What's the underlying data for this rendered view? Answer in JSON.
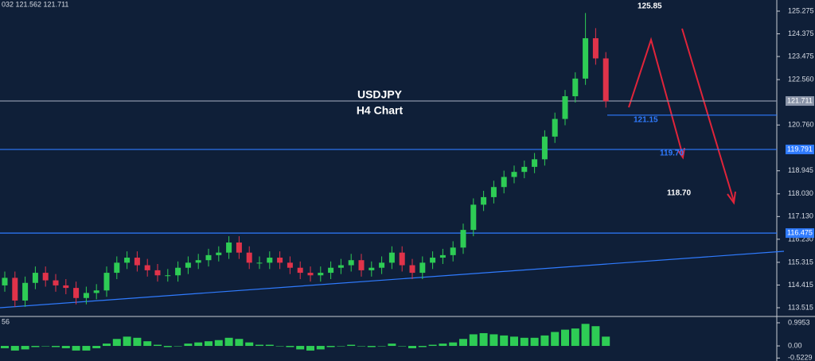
{
  "chart_data": {
    "type": "candlestick",
    "header": "032 121.562 121.711",
    "title": "USDJPY",
    "subtitle": "H4 Chart",
    "up_color": "#2ecc55",
    "down_color": "#e0334a",
    "open": [
      114.4,
      114.7,
      113.8,
      114.5,
      114.9,
      114.6,
      114.4,
      114.3,
      113.9,
      114.1,
      114.2,
      114.9,
      115.3,
      115.5,
      115.2,
      115.0,
      114.8,
      114.8,
      115.1,
      115.3,
      115.4,
      115.6,
      115.7,
      116.1,
      115.7,
      115.3,
      115.3,
      115.5,
      115.3,
      115.1,
      114.9,
      114.8,
      114.9,
      115.1,
      115.2,
      115.4,
      115.0,
      115.1,
      115.3,
      115.7,
      115.2,
      114.9,
      115.3,
      115.5,
      115.6,
      115.9,
      116.6,
      117.6,
      117.9,
      118.3,
      118.7,
      118.9,
      119.1,
      119.4,
      120.3,
      121.0,
      121.9,
      122.6,
      124.2,
      123.4
    ],
    "high": [
      114.95,
      114.95,
      114.75,
      115.15,
      115.15,
      114.85,
      114.65,
      114.55,
      114.35,
      114.45,
      115.15,
      115.55,
      115.75,
      115.75,
      115.45,
      115.25,
      115.05,
      115.35,
      115.55,
      115.65,
      115.85,
      115.95,
      116.35,
      116.35,
      115.95,
      115.55,
      115.75,
      115.75,
      115.55,
      115.35,
      115.15,
      115.15,
      115.35,
      115.45,
      115.65,
      115.65,
      115.35,
      115.55,
      115.95,
      115.95,
      115.45,
      115.55,
      115.75,
      115.85,
      116.15,
      116.85,
      117.85,
      118.15,
      118.55,
      118.95,
      119.15,
      119.35,
      119.65,
      120.55,
      121.25,
      122.15,
      122.85,
      125.2,
      124.6,
      123.65
    ],
    "low": [
      114.15,
      113.55,
      113.55,
      114.25,
      114.35,
      114.15,
      114.05,
      113.65,
      113.65,
      113.85,
      113.95,
      114.65,
      115.05,
      114.95,
      114.75,
      114.55,
      114.55,
      114.55,
      114.85,
      115.05,
      115.15,
      115.35,
      115.45,
      115.45,
      115.05,
      115.05,
      115.05,
      115.05,
      114.85,
      114.65,
      114.55,
      114.55,
      114.65,
      114.85,
      114.95,
      114.75,
      114.75,
      114.85,
      115.05,
      114.95,
      114.65,
      114.65,
      115.05,
      115.25,
      115.35,
      115.65,
      116.35,
      117.35,
      117.65,
      118.05,
      118.45,
      118.65,
      118.85,
      119.15,
      120.05,
      120.75,
      121.65,
      122.35,
      123.15,
      121.45
    ],
    "close": [
      114.7,
      113.8,
      114.5,
      114.9,
      114.6,
      114.4,
      114.3,
      113.9,
      114.1,
      114.2,
      114.9,
      115.3,
      115.5,
      115.2,
      115.0,
      114.8,
      114.8,
      115.1,
      115.3,
      115.4,
      115.6,
      115.7,
      116.1,
      115.7,
      115.3,
      115.3,
      115.5,
      115.3,
      115.1,
      114.9,
      114.8,
      114.9,
      115.1,
      115.2,
      115.4,
      115.0,
      115.1,
      115.3,
      115.7,
      115.2,
      114.9,
      115.3,
      115.5,
      115.6,
      115.9,
      116.6,
      117.6,
      117.9,
      118.3,
      118.7,
      118.9,
      119.1,
      119.4,
      120.3,
      121.0,
      121.9,
      122.6,
      124.2,
      123.4,
      121.7
    ],
    "ylim": [
      113.168,
      125.716
    ],
    "yticks": [
      125.275,
      124.375,
      123.475,
      {
        "value": 122.56,
        "label": "122.560"
      },
      {
        "value": 120.76,
        "label": "120.760"
      },
      118.945,
      {
        "value": 118.03,
        "label": "118.030"
      },
      {
        "value": 117.13,
        "label": "117.130"
      },
      {
        "value": 116.23,
        "label": "116.230"
      },
      115.315,
      114.415,
      113.515
    ],
    "price_lines": [
      {
        "value": 121.711,
        "label": "121.711",
        "color": "#8a94a8"
      },
      {
        "value": 119.791,
        "label": "119.791",
        "color": "#2f7bff"
      },
      {
        "value": 116.475,
        "label": "116.475",
        "color": "#2f7bff"
      }
    ],
    "target_line": {
      "value": 121.15,
      "label": "121.15",
      "color": "#2f7bff"
    },
    "annotations": [
      {
        "text": "125.85",
        "color": "#ffffff"
      },
      {
        "text": "119.70",
        "color": "#2f7bff"
      },
      {
        "text": "118.70",
        "color": "#ffffff"
      }
    ],
    "indicator": {
      "label": "56",
      "color": "#2ecc55",
      "ylim": [
        -0.65,
        1.2
      ],
      "yticks": [
        0.9953,
        {
          "value": 0,
          "label": "0.00"
        },
        -0.5229
      ],
      "values": [
        -0.1,
        -0.2,
        -0.15,
        -0.05,
        0.0,
        -0.05,
        -0.1,
        -0.2,
        -0.2,
        -0.1,
        0.1,
        0.3,
        0.4,
        0.35,
        0.2,
        0.05,
        -0.05,
        0.0,
        0.1,
        0.15,
        0.2,
        0.25,
        0.35,
        0.3,
        0.15,
        0.05,
        0.05,
        0.0,
        -0.05,
        -0.15,
        -0.2,
        -0.15,
        -0.05,
        0.0,
        0.05,
        0.0,
        -0.05,
        0.0,
        0.1,
        0.0,
        -0.1,
        -0.05,
        0.05,
        0.1,
        0.15,
        0.3,
        0.5,
        0.55,
        0.5,
        0.45,
        0.4,
        0.35,
        0.35,
        0.45,
        0.6,
        0.7,
        0.75,
        0.95,
        0.85,
        0.4
      ]
    }
  }
}
